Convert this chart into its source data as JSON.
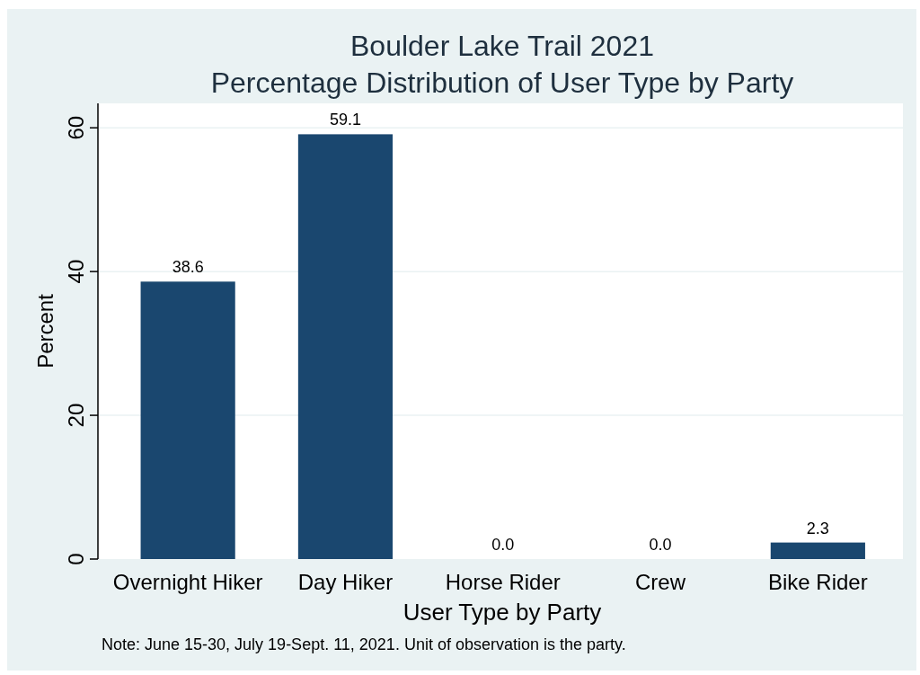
{
  "chart_data": {
    "type": "bar",
    "title": "Boulder Lake Trail 2021",
    "subtitle": "Percentage Distribution of User Type by Party",
    "xlabel": "User Type by Party",
    "ylabel": "Percent",
    "categories": [
      "Overnight Hiker",
      "Day Hiker",
      "Horse Rider",
      "Crew",
      "Bike Rider"
    ],
    "values": [
      38.6,
      59.1,
      0.0,
      0.0,
      2.3
    ],
    "value_labels": [
      "38.6",
      "59.1",
      "0.0",
      "0.0",
      "2.3"
    ],
    "color": "#1a476f",
    "ylim": [
      0,
      63.4
    ],
    "yticks": [
      0,
      20,
      40,
      60
    ],
    "grid": "y",
    "annotations": [
      "Note: June 15-30, July 19-Sept. 11, 2021. Unit of observation is the party."
    ]
  }
}
